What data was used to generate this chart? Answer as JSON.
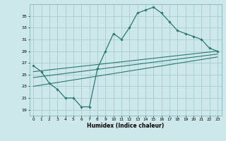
{
  "title": "",
  "xlabel": "Humidex (Indice chaleur)",
  "bg_color": "#cce8ea",
  "grid_color": "#aaccce",
  "line_color": "#2a7a72",
  "xlim": [
    -0.5,
    23.5
  ],
  "ylim": [
    18,
    37
  ],
  "yticks": [
    19,
    21,
    23,
    25,
    27,
    29,
    31,
    33,
    35
  ],
  "xticks": [
    0,
    1,
    2,
    3,
    4,
    5,
    6,
    7,
    8,
    9,
    10,
    11,
    12,
    13,
    14,
    15,
    16,
    17,
    18,
    19,
    20,
    21,
    22,
    23
  ],
  "main_line_x": [
    0,
    1,
    2,
    3,
    4,
    5,
    6,
    7,
    8,
    9,
    10,
    11,
    12,
    13,
    14,
    15,
    16,
    17,
    18,
    19,
    20,
    21,
    22,
    23
  ],
  "main_line_y": [
    26.5,
    25.5,
    23.5,
    22.5,
    21.0,
    21.0,
    19.5,
    19.5,
    26.0,
    29.0,
    32.0,
    31.0,
    33.0,
    35.5,
    36.0,
    36.5,
    35.5,
    34.0,
    32.5,
    32.0,
    31.5,
    31.0,
    29.5,
    29.0
  ],
  "trend1_x": [
    0,
    23
  ],
  "trend1_y": [
    25.5,
    29.0
  ],
  "trend2_x": [
    0,
    23
  ],
  "trend2_y": [
    24.5,
    28.5
  ],
  "trend3_x": [
    0,
    23
  ],
  "trend3_y": [
    23.0,
    28.0
  ]
}
